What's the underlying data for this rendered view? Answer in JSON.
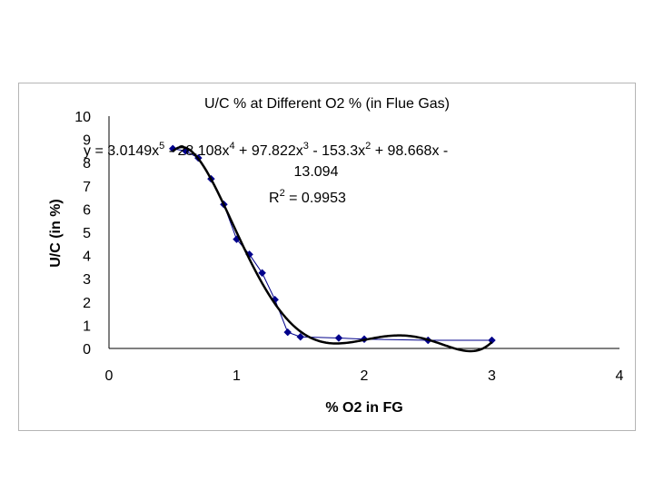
{
  "chart_data": {
    "type": "scatter",
    "title": "U/C % at Different O2 % (in Flue Gas)",
    "xlabel": "% O2 in FG",
    "ylabel": "U/C (in %)",
    "xlim": [
      0,
      4
    ],
    "ylim": [
      0,
      10
    ],
    "xticks": [
      "0",
      "1",
      "2",
      "3",
      "4"
    ],
    "yticks": [
      "0",
      "1",
      "2",
      "3",
      "4",
      "5",
      "6",
      "7",
      "8",
      "9",
      "10"
    ],
    "grid": false,
    "series": [
      {
        "name": "U/C %",
        "color": "#00008b",
        "marker": "diamond",
        "x": [
          0.5,
          0.6,
          0.7,
          0.8,
          0.9,
          1.0,
          1.1,
          1.2,
          1.3,
          1.4,
          1.5,
          1.8,
          2.0,
          2.5,
          3.0
        ],
        "y": [
          8.6,
          8.5,
          8.2,
          7.3,
          6.2,
          4.7,
          4.05,
          3.25,
          2.1,
          0.7,
          0.5,
          0.45,
          0.4,
          0.35,
          0.35
        ]
      }
    ],
    "trendline": {
      "type": "poly5",
      "color": "#000000",
      "coefficients": [
        3.0149,
        -28.108,
        97.822,
        -153.3,
        98.668,
        -13.094
      ],
      "x_range": [
        0.5,
        3.0
      ],
      "equation": {
        "line1_parts": [
          "y = 3.0149x",
          "5",
          " - 28.108x",
          "4",
          " + 97.822x",
          "3",
          " - 153.3x",
          "2",
          " + 98.668x -"
        ],
        "line2": "13.094",
        "r2_prefix": "R",
        "r2_sup": "2",
        "r2_suffix": " = 0.9953"
      }
    }
  }
}
